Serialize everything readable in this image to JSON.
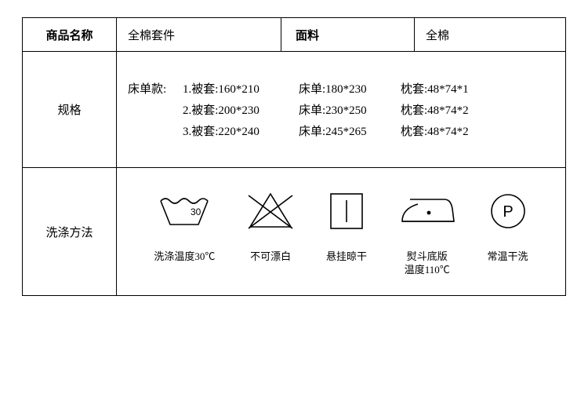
{
  "row1": {
    "name_label": "商品名称",
    "name_value": "全棉套件",
    "fabric_label": "面料",
    "fabric_value": "全棉"
  },
  "row2": {
    "label": "规格",
    "style_label": "床单款:",
    "lines": [
      {
        "a": "床单款:",
        "b": "1.被套:160*210",
        "c": "床单:180*230",
        "d": "枕套:48*74*1"
      },
      {
        "a": "",
        "b": "2.被套:200*230",
        "c": "床单:230*250",
        "d": "枕套:48*74*2"
      },
      {
        "a": "",
        "b": "3.被套:220*240",
        "c": "床单:245*265",
        "d": "枕套:48*74*2"
      }
    ]
  },
  "row3": {
    "label": "洗涤方法",
    "icons": [
      {
        "name": "wash-30-icon",
        "caption": "洗涤温度30℃"
      },
      {
        "name": "no-bleach-icon",
        "caption": "不可漂白"
      },
      {
        "name": "line-dry-icon",
        "caption": "悬挂晾干"
      },
      {
        "name": "iron-110-icon",
        "caption": "熨斗底版\n温度110℃"
      },
      {
        "name": "dryclean-p-icon",
        "caption": "常温干洗"
      }
    ]
  },
  "style": {
    "stroke": "#000000",
    "stroke_width": 1.6,
    "font_family": "SimSun",
    "wash_temp_text": "30",
    "dryclean_letter": "P"
  }
}
